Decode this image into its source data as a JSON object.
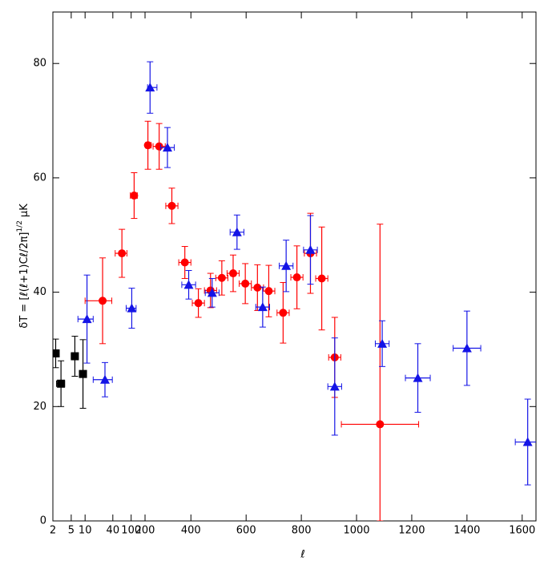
{
  "chart_data": {
    "type": "scatter",
    "xlabel": "ℓ",
    "ylabel": {
      "main": "δT = [ℓ(ℓ+1)Cℓ/2π]",
      "sup": "1/2",
      "unit": "μK"
    },
    "xlim": [
      2,
      1650
    ],
    "ylim": [
      0,
      89
    ],
    "xticks": [
      2,
      5,
      10,
      40,
      100,
      200,
      400,
      600,
      800,
      1000,
      1200,
      1400,
      1600
    ],
    "yticks": [
      0,
      20,
      40,
      60,
      80
    ],
    "series": [
      {
        "marker": "square",
        "color": "#000000",
        "x": [
          2.3,
          3,
          6,
          9
        ],
        "values": [
          29.3,
          24,
          28.8,
          25.7
        ],
        "yerr": [
          2.5,
          4,
          3.5,
          6
        ],
        "xerr": [
          0.3,
          0.6,
          1,
          1.5
        ]
      },
      {
        "marker": "circle",
        "color": "#ff0000",
        "x": [
          24,
          63,
          116,
          231,
          285,
          331,
          378,
          427,
          471,
          512,
          553,
          597,
          641,
          682,
          734,
          784,
          833,
          874,
          921,
          1085
        ],
        "values": [
          38.5,
          46.8,
          56.9,
          65.7,
          65.5,
          55.1,
          45.2,
          38.1,
          40.3,
          42.5,
          43.3,
          41.5,
          40.8,
          40.2,
          36.4,
          42.6,
          46.8,
          42.4,
          28.6,
          16.9
        ],
        "yerr": [
          7.5,
          4.2,
          4,
          4.2,
          4,
          3.1,
          2.8,
          2.5,
          3,
          3,
          3.2,
          3.5,
          4,
          4.5,
          5.3,
          5.5,
          7,
          9,
          7,
          [
            16.9,
            35
          ]
        ],
        "xerr": [
          14,
          18,
          20,
          25,
          22,
          22,
          22,
          22,
          22,
          22,
          22,
          22,
          22,
          22,
          22,
          22,
          22,
          22,
          22,
          140
        ]
      },
      {
        "marker": "triangle",
        "color": "#1414e6",
        "x": [
          11,
          27,
          103,
          252,
          315,
          392,
          477,
          567,
          660,
          745,
          833,
          921,
          1093,
          1222,
          1400,
          1620
        ],
        "values": [
          35.3,
          24.7,
          37.2,
          75.8,
          65.3,
          41.3,
          39.9,
          50.5,
          37.4,
          44.6,
          47.4,
          23.5,
          31,
          25,
          30.2,
          13.8
        ],
        "yerr": [
          7.7,
          3,
          3.5,
          4.5,
          3.5,
          2.5,
          2.5,
          3,
          3.5,
          4.5,
          6,
          8.5,
          4,
          6,
          6.5,
          7.5
        ],
        "xerr": [
          4,
          12,
          25,
          25,
          25,
          25,
          25,
          25,
          25,
          25,
          25,
          25,
          25,
          45,
          50,
          45
        ]
      }
    ]
  }
}
